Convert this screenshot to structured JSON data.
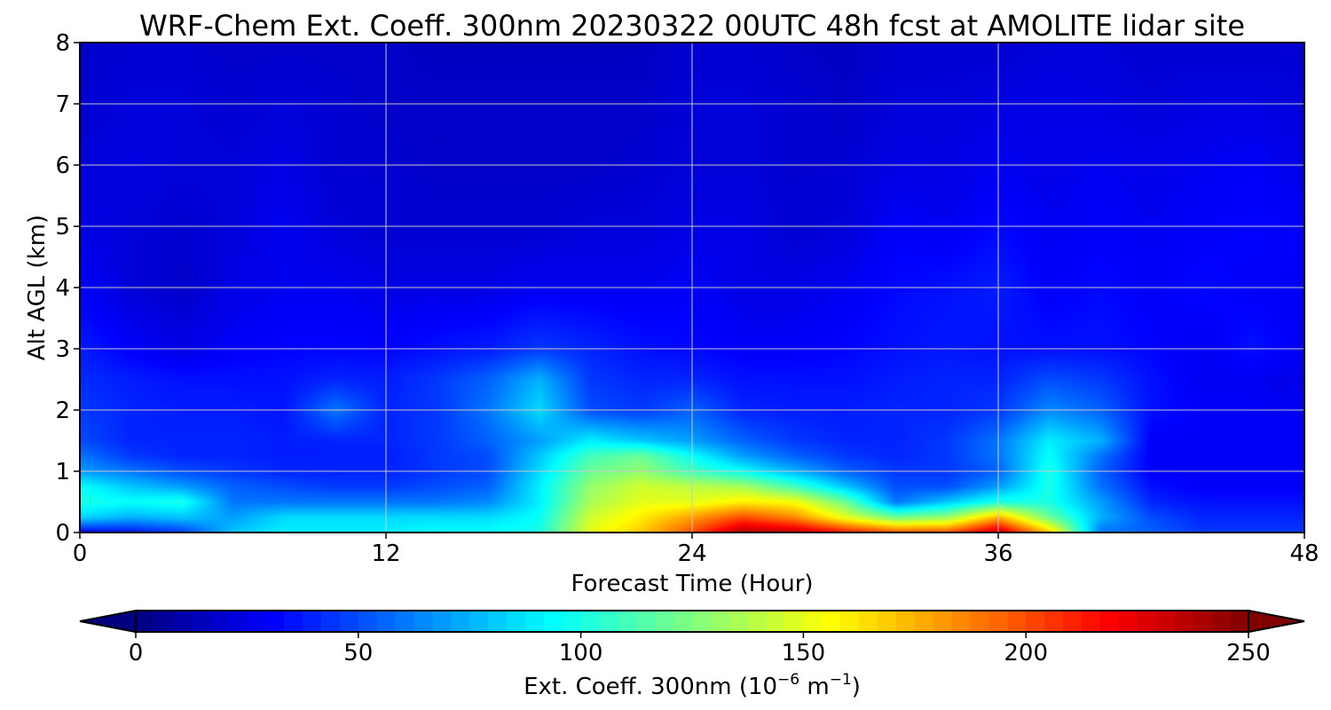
{
  "chart_data": {
    "type": "heatmap",
    "title": "WRF-Chem Ext. Coeff. 300nm  20230322 00UTC 48h fcst at AMOLITE lidar site",
    "xlabel": "Forecast Time (Hour)",
    "ylabel": "Alt AGL (km)",
    "xlim": [
      0,
      48
    ],
    "ylim": [
      0,
      8
    ],
    "x_ticks": [
      0,
      12,
      24,
      36,
      48
    ],
    "y_ticks": [
      0,
      1,
      2,
      3,
      4,
      5,
      6,
      7,
      8
    ],
    "grid": true,
    "colormap": "jet",
    "colorbar": {
      "label_main": "Ext. Coeff. 300nm  (10",
      "label_exp1": "−6",
      "label_mid": " m",
      "label_exp2": "−1",
      "label_end": ")",
      "range": [
        0,
        250
      ],
      "ticks": [
        0,
        50,
        100,
        150,
        200,
        250
      ],
      "extend": "both"
    },
    "x_hours": [
      0,
      2,
      4,
      6,
      8,
      10,
      12,
      14,
      16,
      18,
      20,
      22,
      24,
      26,
      28,
      30,
      32,
      34,
      36,
      38,
      40,
      42,
      44,
      46,
      48
    ],
    "y_km": [
      0,
      0.25,
      0.5,
      0.75,
      1,
      1.25,
      1.5,
      2,
      2.5,
      3,
      4,
      5,
      6,
      7,
      8
    ],
    "values": [
      [
        30,
        35,
        45,
        80,
        90,
        90,
        90,
        95,
        95,
        100,
        150,
        170,
        200,
        240,
        235,
        215,
        200,
        200,
        235,
        170,
        60,
        55,
        45,
        45,
        45
      ],
      [
        85,
        75,
        80,
        70,
        85,
        85,
        85,
        85,
        85,
        95,
        145,
        160,
        180,
        200,
        185,
        150,
        120,
        130,
        175,
        120,
        75,
        50,
        40,
        40,
        40
      ],
      [
        100,
        95,
        100,
        60,
        60,
        60,
        60,
        60,
        65,
        90,
        135,
        150,
        150,
        160,
        155,
        120,
        60,
        80,
        100,
        100,
        70,
        40,
        35,
        35,
        35
      ],
      [
        95,
        80,
        70,
        55,
        50,
        45,
        45,
        50,
        55,
        90,
        130,
        145,
        140,
        135,
        110,
        80,
        50,
        50,
        70,
        100,
        60,
        35,
        30,
        30,
        30
      ],
      [
        70,
        60,
        50,
        45,
        40,
        40,
        40,
        45,
        50,
        85,
        120,
        130,
        110,
        95,
        75,
        55,
        45,
        45,
        55,
        100,
        55,
        30,
        30,
        30,
        30
      ],
      [
        60,
        45,
        40,
        40,
        38,
        38,
        38,
        45,
        50,
        80,
        110,
        120,
        95,
        70,
        55,
        45,
        40,
        45,
        60,
        95,
        60,
        30,
        30,
        30,
        30
      ],
      [
        50,
        40,
        40,
        40,
        38,
        40,
        40,
        45,
        55,
        70,
        90,
        80,
        70,
        55,
        45,
        40,
        40,
        45,
        60,
        90,
        75,
        30,
        30,
        30,
        30
      ],
      [
        45,
        40,
        38,
        38,
        36,
        60,
        40,
        45,
        60,
        85,
        50,
        45,
        55,
        40,
        38,
        38,
        40,
        40,
        45,
        65,
        55,
        35,
        30,
        30,
        28
      ],
      [
        42,
        38,
        35,
        35,
        35,
        40,
        38,
        45,
        55,
        75,
        45,
        40,
        40,
        35,
        35,
        35,
        38,
        40,
        40,
        50,
        45,
        35,
        28,
        28,
        26
      ],
      [
        38,
        30,
        25,
        30,
        32,
        32,
        32,
        35,
        38,
        45,
        40,
        35,
        33,
        30,
        30,
        32,
        35,
        37,
        35,
        35,
        35,
        32,
        28,
        35,
        28
      ],
      [
        30,
        22,
        18,
        25,
        28,
        28,
        25,
        25,
        25,
        28,
        28,
        28,
        30,
        25,
        25,
        28,
        33,
        35,
        38,
        30,
        33,
        30,
        33,
        30,
        30
      ],
      [
        25,
        22,
        20,
        22,
        28,
        22,
        20,
        20,
        20,
        20,
        22,
        22,
        25,
        25,
        20,
        22,
        30,
        28,
        33,
        28,
        30,
        28,
        30,
        32,
        30
      ],
      [
        22,
        24,
        22,
        22,
        25,
        20,
        20,
        18,
        18,
        18,
        18,
        20,
        22,
        22,
        20,
        20,
        25,
        24,
        28,
        26,
        28,
        26,
        28,
        30,
        25
      ],
      [
        20,
        22,
        22,
        20,
        22,
        20,
        18,
        18,
        18,
        18,
        18,
        18,
        22,
        22,
        20,
        18,
        22,
        22,
        24,
        25,
        24,
        22,
        24,
        24,
        22
      ],
      [
        18,
        20,
        20,
        18,
        18,
        18,
        18,
        16,
        16,
        16,
        16,
        16,
        20,
        20,
        18,
        16,
        20,
        20,
        20,
        22,
        22,
        20,
        20,
        20,
        20
      ]
    ]
  }
}
